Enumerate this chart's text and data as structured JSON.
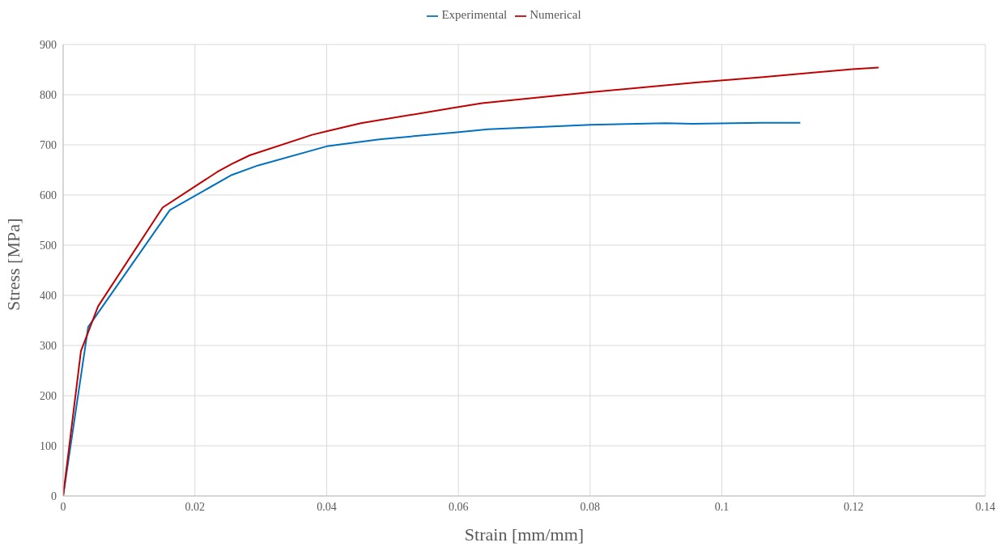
{
  "chart_data": {
    "type": "line",
    "xlabel": "Strain [mm/mm]",
    "ylabel": "Stress [MPa]",
    "xlim": [
      0,
      0.14
    ],
    "xticks": [
      0,
      0.02,
      0.04,
      0.06,
      0.08,
      0.1,
      0.12,
      0.14
    ],
    "ylim": [
      0,
      900
    ],
    "yticks": [
      0,
      100,
      200,
      300,
      400,
      500,
      600,
      700,
      800,
      900
    ],
    "grid": true,
    "legend": "top",
    "marker": "none",
    "series": [
      {
        "name": "Experimental",
        "color": "#0070c0",
        "x": [
          0,
          0.0038,
          0.0162,
          0.0256,
          0.0296,
          0.04,
          0.048,
          0.0598,
          0.0645,
          0.08,
          0.0915,
          0.0955,
          0.106,
          0.1119
        ],
        "values": [
          0,
          337,
          570,
          640,
          659,
          697,
          711,
          725,
          731,
          740,
          743,
          742,
          744,
          744
        ]
      },
      {
        "name": "Numerical",
        "color": "#c00000",
        "x": [
          0,
          0.0027,
          0.0053,
          0.0151,
          0.0234,
          0.0256,
          0.0283,
          0.0378,
          0.04,
          0.0452,
          0.0598,
          0.0636,
          0.08,
          0.096,
          0.1063,
          0.1198,
          0.1238
        ],
        "values": [
          0,
          289,
          378,
          575,
          646,
          662,
          679,
          720,
          727,
          743,
          775,
          783,
          805,
          824,
          835,
          851,
          854
        ]
      }
    ]
  }
}
